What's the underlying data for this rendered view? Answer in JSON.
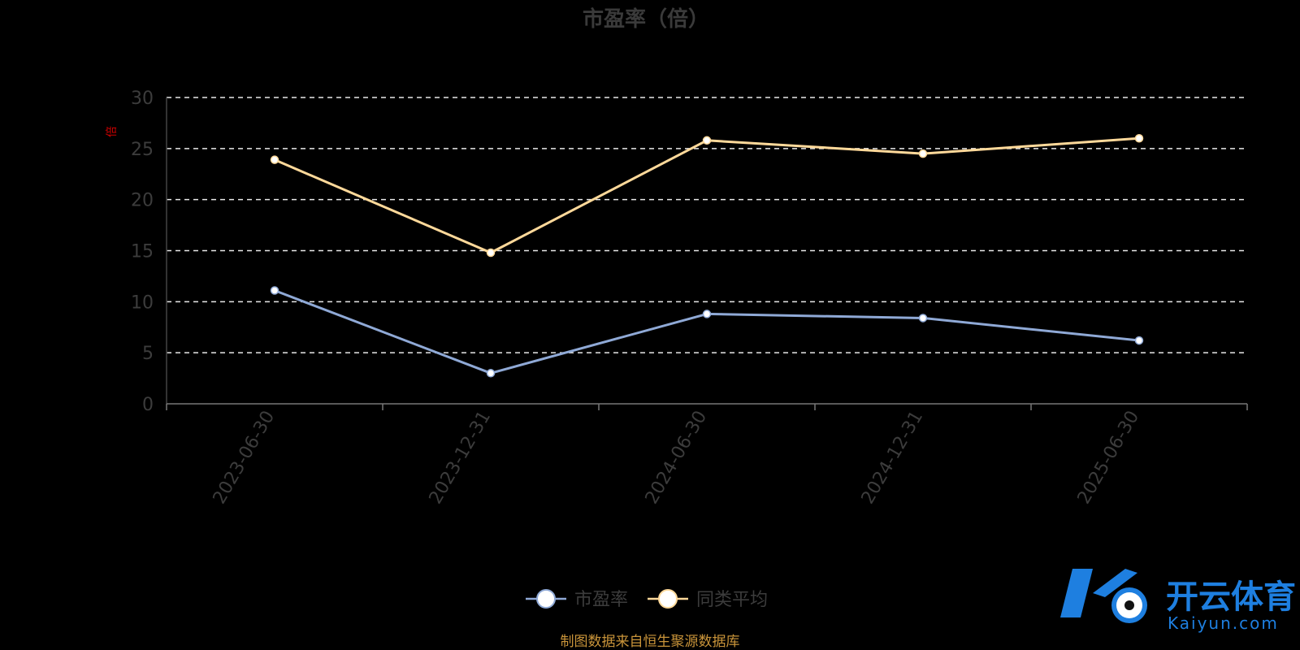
{
  "chart_data": {
    "type": "line",
    "title": "市盈率（倍）",
    "ylabel": "倍",
    "ylim": [
      0,
      30
    ],
    "yticks": [
      0,
      5,
      10,
      15,
      20,
      25,
      30
    ],
    "grid": true,
    "legend_position": "bottom",
    "categories": [
      "2023-06-30",
      "2023-12-31",
      "2024-06-30",
      "2024-12-31",
      "2025-06-30"
    ],
    "series": [
      {
        "name": "市盈率",
        "color": "#8fa9d6",
        "values": [
          11.1,
          3.0,
          8.8,
          8.4,
          6.2
        ]
      },
      {
        "name": "同类平均",
        "color": "#ffd99a",
        "values": [
          23.9,
          14.8,
          25.8,
          24.5,
          26.0
        ]
      }
    ]
  },
  "source_note": "制图数据来自恒生聚源数据库",
  "brand": {
    "name_cn": "开云体育",
    "name_en": "Kaiyun.com",
    "mark": "K"
  }
}
